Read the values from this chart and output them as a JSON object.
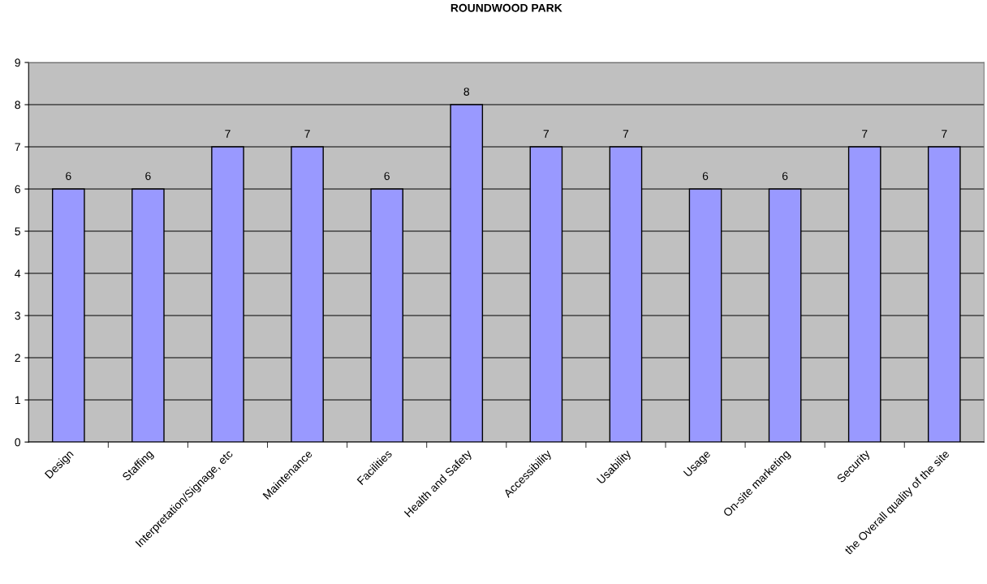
{
  "chart_data": {
    "type": "bar",
    "title": "ROUNDWOOD PARK",
    "categories": [
      "Design",
      "Staffing",
      "Interpretation/Signage, etc",
      "Maintenance",
      "Facilities",
      "Health and Safety",
      "Accessibility",
      "Usability",
      "Usage",
      "On-site marketing",
      "Security",
      "the Overall quality of the site"
    ],
    "values": [
      6,
      6,
      7,
      7,
      6,
      8,
      7,
      7,
      6,
      6,
      7,
      7
    ],
    "color": "#9999ff",
    "ylim": [
      0,
      9
    ],
    "yticks": [
      0,
      1,
      2,
      3,
      4,
      5,
      6,
      7,
      8,
      9
    ],
    "grid": "y",
    "data_labels": true
  }
}
